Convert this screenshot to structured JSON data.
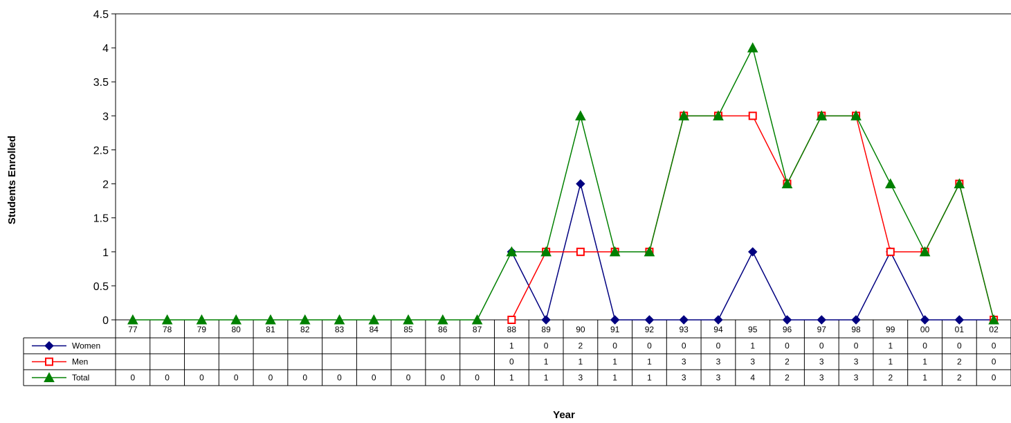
{
  "chart_data": {
    "type": "line",
    "title": "",
    "xlabel": "Year",
    "ylabel": "Students Enrolled",
    "ylim": [
      0,
      4.5
    ],
    "yticks": [
      "0",
      "0.5",
      "1",
      "1.5",
      "2",
      "2.5",
      "3",
      "3.5",
      "4",
      "4.5"
    ],
    "categories": [
      "77",
      "78",
      "79",
      "80",
      "81",
      "82",
      "83",
      "84",
      "85",
      "86",
      "87",
      "88",
      "89",
      "90",
      "91",
      "92",
      "93",
      "94",
      "95",
      "96",
      "97",
      "98",
      "99",
      "00",
      "01",
      "02"
    ],
    "grid": false,
    "legend": "data-table-below",
    "series": [
      {
        "name": "Women",
        "color": "#000080",
        "marker": "diamond",
        "values": [
          null,
          null,
          null,
          null,
          null,
          null,
          null,
          null,
          null,
          null,
          null,
          1,
          0,
          2,
          0,
          0,
          0,
          0,
          1,
          0,
          0,
          0,
          1,
          0,
          0,
          0
        ]
      },
      {
        "name": "Men",
        "color": "#ff0000",
        "marker": "square",
        "values": [
          null,
          null,
          null,
          null,
          null,
          null,
          null,
          null,
          null,
          null,
          null,
          0,
          1,
          1,
          1,
          1,
          3,
          3,
          3,
          2,
          3,
          3,
          1,
          1,
          2,
          0
        ]
      },
      {
        "name": "Total",
        "color": "#008000",
        "marker": "triangle",
        "values": [
          0,
          0,
          0,
          0,
          0,
          0,
          0,
          0,
          0,
          0,
          0,
          1,
          1,
          3,
          1,
          1,
          3,
          3,
          4,
          2,
          3,
          3,
          2,
          1,
          2,
          0
        ]
      }
    ]
  }
}
